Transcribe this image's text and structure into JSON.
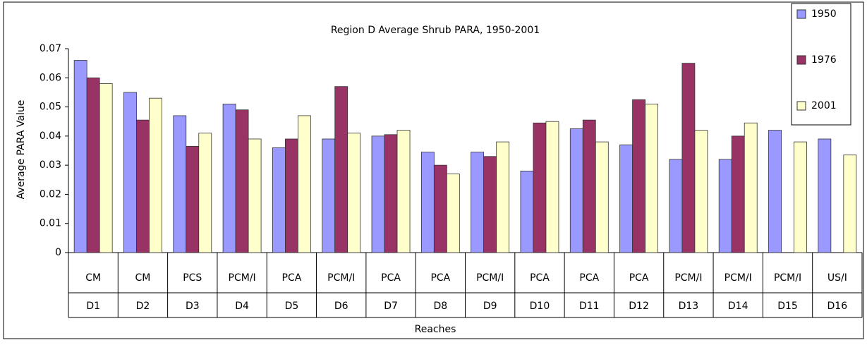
{
  "chart_data": {
    "type": "bar",
    "title": "Region D Average Shrub PARA, 1950-2001",
    "x_label": "Reaches",
    "y_label": "Average PARA Value",
    "categories": [
      "D1",
      "D2",
      "D3",
      "D4",
      "D5",
      "D6",
      "D7",
      "D8",
      "D9",
      "D10",
      "D11",
      "D12",
      "D13",
      "D14",
      "D15",
      "D16"
    ],
    "category_groups": [
      "CM",
      "CM",
      "PCS",
      "PCM/I",
      "PCA",
      "PCM/I",
      "PCA",
      "PCA",
      "PCM/I",
      "PCA",
      "PCA",
      "PCA",
      "PCM/I",
      "PCM/I",
      "PCM/I",
      "US/I"
    ],
    "series": [
      {
        "name": "1950",
        "color": "#9999ff",
        "values": [
          0.066,
          0.055,
          0.047,
          0.051,
          0.036,
          0.039,
          0.04,
          0.0345,
          0.0345,
          0.028,
          0.0425,
          0.037,
          0.032,
          0.032,
          0.042,
          0.039
        ]
      },
      {
        "name": "1976",
        "color": "#993366",
        "values": [
          0.06,
          0.0455,
          0.0365,
          0.049,
          0.039,
          0.057,
          0.0405,
          0.03,
          0.033,
          0.0445,
          0.0455,
          0.0525,
          0.065,
          0.04,
          null,
          null
        ]
      },
      {
        "name": "2001",
        "color": "#ffffcc",
        "values": [
          0.058,
          0.053,
          0.041,
          0.039,
          0.047,
          0.041,
          0.042,
          0.027,
          0.038,
          0.045,
          0.038,
          0.051,
          0.042,
          0.0445,
          0.038,
          0.0335
        ]
      }
    ],
    "ylim": [
      0,
      0.07
    ],
    "yticks": [
      0,
      0.01,
      0.02,
      0.03,
      0.04,
      0.05,
      0.06,
      0.07
    ],
    "grid": false,
    "legend": "right"
  }
}
